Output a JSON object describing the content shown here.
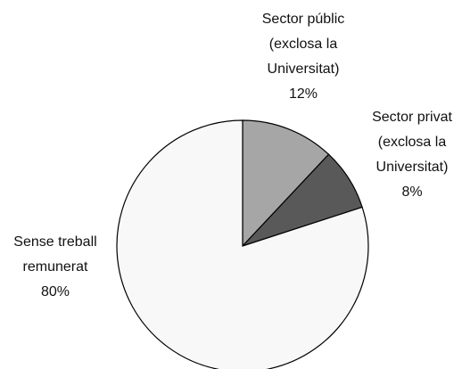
{
  "chart_data": {
    "type": "pie",
    "categories": [
      "Sector públic (exclosa la Universitat)",
      "Sector privat (exclosa la Universitat)",
      "Sense treball remunerat"
    ],
    "values": [
      12,
      8,
      80
    ],
    "value_labels": [
      "12%",
      "8%",
      "80%"
    ],
    "colors": [
      "#a6a6a6",
      "#595959",
      "#f8f8f8"
    ]
  }
}
